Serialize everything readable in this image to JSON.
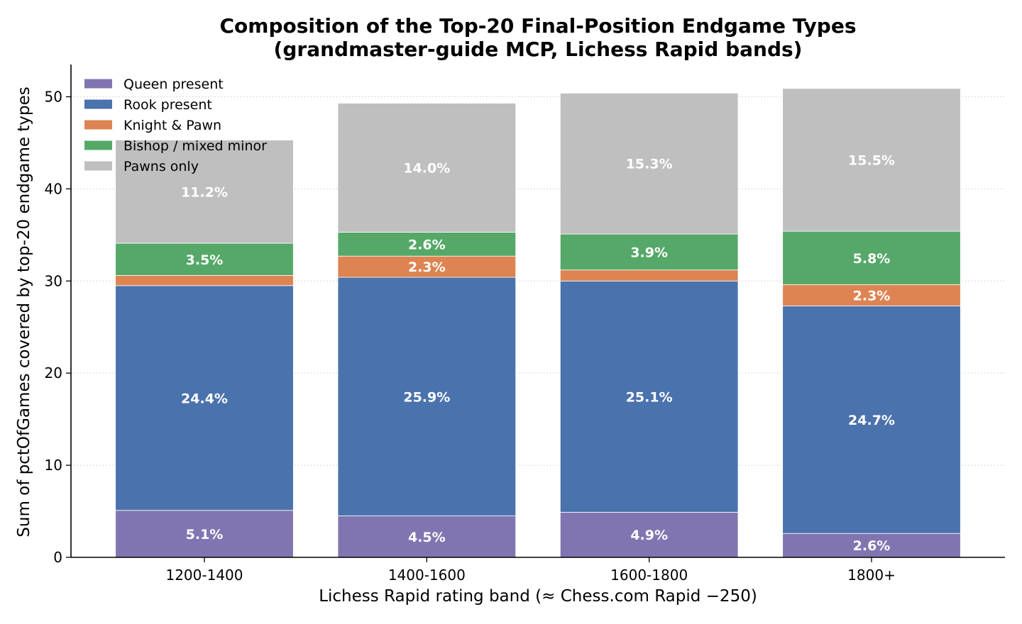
{
  "chart_data": {
    "type": "bar",
    "stacked": true,
    "title_line1": "Composition of the Top-20 Final-Position Endgame Types",
    "title_line2": "(grandmaster-guide MCP, Lichess Rapid bands)",
    "xlabel": "Lichess Rapid rating band  (≈ Chess.com Rapid −250)",
    "ylabel": "Sum of pctOfGames covered by top-20 endgame types",
    "ylim": [
      0,
      53.5
    ],
    "yticks": [
      0,
      10,
      20,
      30,
      40,
      50
    ],
    "grid": "horizontal dotted",
    "legend_position": "top-left",
    "categories": [
      "1200-1400",
      "1400-1600",
      "1600-1800",
      "1800+"
    ],
    "series": [
      {
        "name": "Queen present",
        "color": "#8175b1",
        "values": [
          5.1,
          4.5,
          4.9,
          2.6
        ],
        "labels": [
          "5.1%",
          "4.5%",
          "4.9%",
          "2.6%"
        ]
      },
      {
        "name": "Rook present",
        "color": "#4a72ad",
        "values": [
          24.4,
          25.9,
          25.1,
          24.7
        ],
        "labels": [
          "24.4%",
          "25.9%",
          "25.1%",
          "24.7%"
        ]
      },
      {
        "name": "Knight & Pawn",
        "color": "#dd8452",
        "values": [
          1.1,
          2.3,
          1.2,
          2.3
        ],
        "labels": [
          "",
          "2.3%",
          "",
          "2.3%"
        ]
      },
      {
        "name": "Bishop / mixed minor",
        "color": "#55a868",
        "values": [
          3.5,
          2.6,
          3.9,
          5.8
        ],
        "labels": [
          "3.5%",
          "2.6%",
          "3.9%",
          "5.8%"
        ]
      },
      {
        "name": "Pawns only",
        "color": "#bfbfbf",
        "values": [
          11.2,
          14.0,
          15.3,
          15.5
        ],
        "labels": [
          "11.2%",
          "14.0%",
          "15.3%",
          "15.5%"
        ]
      }
    ]
  }
}
